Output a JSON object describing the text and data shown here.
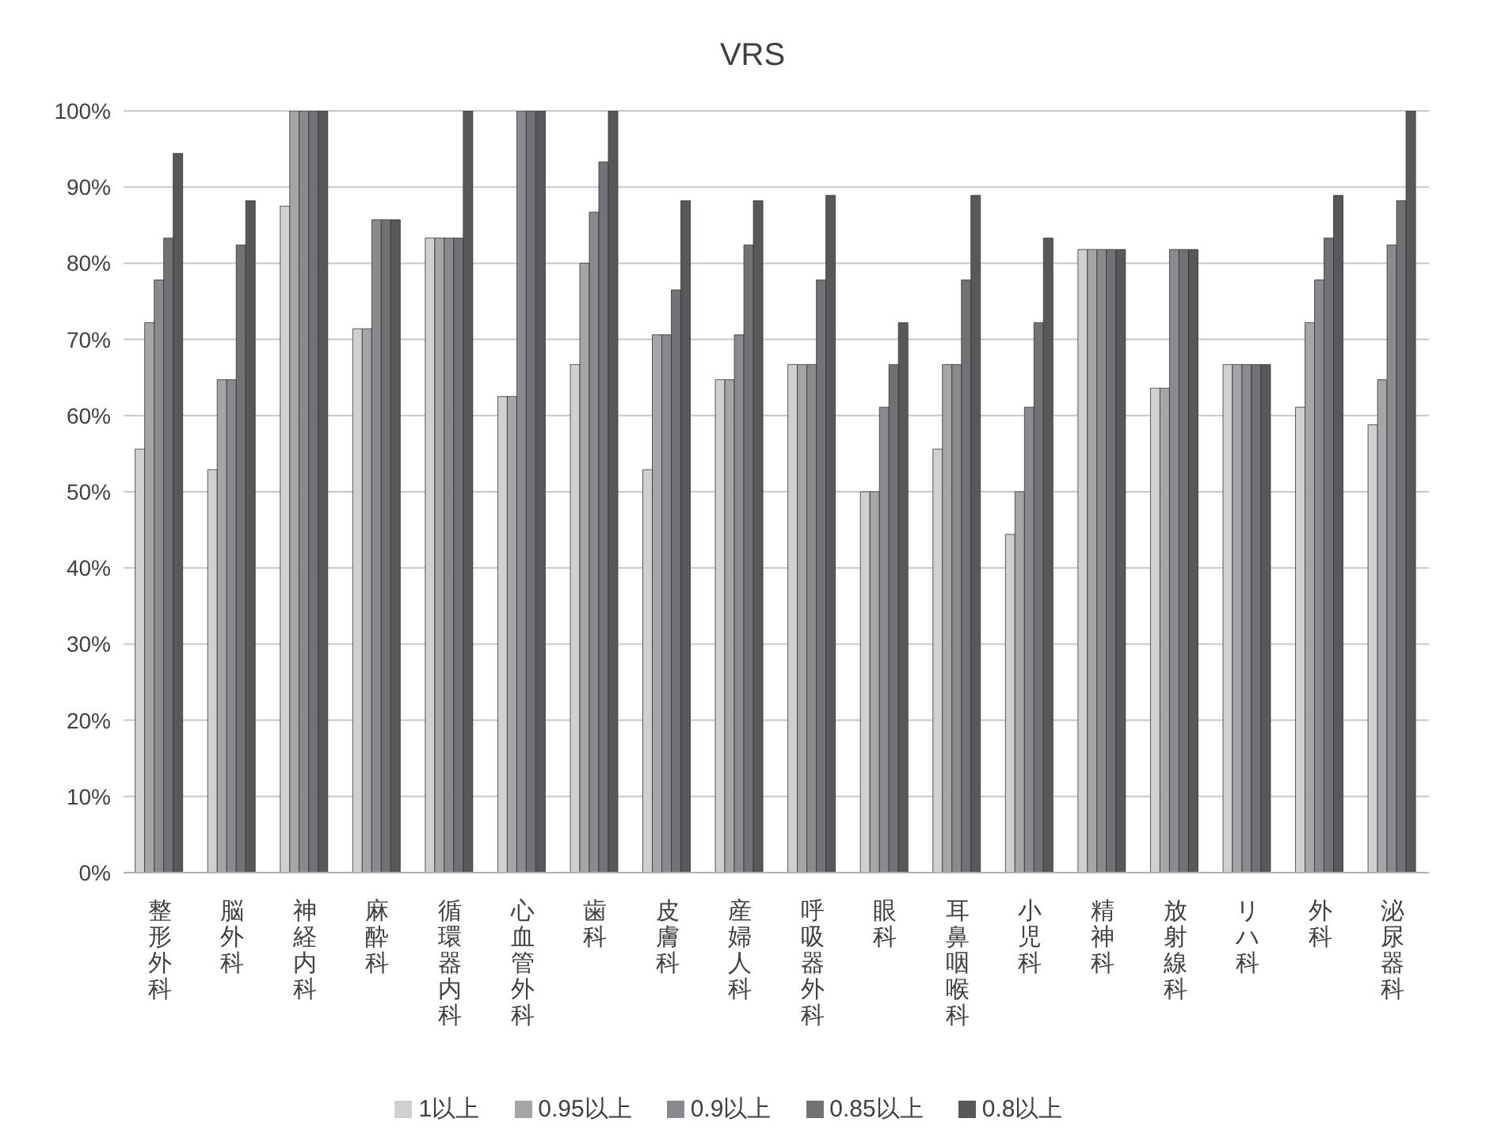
{
  "chart_data": {
    "type": "bar",
    "title": "VRS",
    "categories": [
      "整形外科",
      "脳外科",
      "神経内科",
      "麻酔科",
      "循環器内科",
      "心血管外科",
      "歯科",
      "皮膚科",
      "産婦人科",
      "呼吸器外科",
      "眼科",
      "耳鼻咽喉科",
      "小児科",
      "精神科",
      "放射線科",
      "リハ科",
      "外科",
      "泌尿器科"
    ],
    "series": [
      {
        "name": "1以上",
        "color": "#d0d0d2",
        "values": [
          55.6,
          52.9,
          87.5,
          71.4,
          83.3,
          62.5,
          66.7,
          52.9,
          64.7,
          66.7,
          50,
          55.6,
          44.4,
          81.8,
          63.6,
          66.7,
          61.1,
          58.8
        ]
      },
      {
        "name": "0.95以上",
        "color": "#a5a5a8",
        "values": [
          72.2,
          64.7,
          100,
          71.4,
          83.3,
          62.5,
          80,
          70.6,
          64.7,
          66.7,
          50,
          66.7,
          50,
          81.8,
          63.6,
          66.7,
          72.2,
          64.7
        ]
      },
      {
        "name": "0.9以上",
        "color": "#8a8a8e",
        "values": [
          77.8,
          64.7,
          100,
          85.7,
          83.3,
          100,
          86.7,
          70.6,
          70.6,
          66.7,
          61.1,
          66.7,
          61.1,
          81.8,
          81.8,
          66.7,
          77.8,
          82.4
        ]
      },
      {
        "name": "0.85以上",
        "color": "#727276",
        "values": [
          83.3,
          82.4,
          100,
          85.7,
          83.3,
          100,
          93.3,
          76.5,
          82.4,
          77.8,
          66.7,
          77.8,
          72.2,
          81.8,
          81.8,
          66.7,
          83.3,
          88.2
        ]
      },
      {
        "name": "0.8以上",
        "color": "#58585a",
        "values": [
          94.4,
          88.2,
          100,
          85.7,
          100,
          100,
          100,
          88.2,
          88.2,
          88.9,
          72.2,
          88.9,
          83.3,
          81.8,
          81.8,
          66.7,
          88.9,
          100
        ]
      }
    ],
    "ylim": [
      0,
      100
    ],
    "yticks": [
      {
        "value": 0,
        "label": "0%"
      },
      {
        "value": 10,
        "label": "10%"
      },
      {
        "value": 20,
        "label": "20%"
      },
      {
        "value": 30,
        "label": "30%"
      },
      {
        "value": 40,
        "label": "40%"
      },
      {
        "value": 50,
        "label": "50%"
      },
      {
        "value": 60,
        "label": "60%"
      },
      {
        "value": 70,
        "label": "70%"
      },
      {
        "value": 80,
        "label": "80%"
      },
      {
        "value": 90,
        "label": "90%"
      },
      {
        "value": 100,
        "label": "100%"
      }
    ],
    "grid": "y",
    "legend": "bottom"
  }
}
